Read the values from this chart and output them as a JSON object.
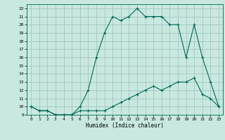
{
  "xlabel": "Humidex (Indice chaleur)",
  "bg_color": "#c8e8e0",
  "grid_color": "#a0c8c0",
  "line_color": "#006858",
  "xlim": [
    -0.5,
    23.5
  ],
  "ylim": [
    9,
    22.5
  ],
  "xticks": [
    0,
    1,
    2,
    3,
    4,
    5,
    6,
    7,
    8,
    9,
    10,
    11,
    12,
    13,
    14,
    15,
    16,
    17,
    18,
    19,
    20,
    21,
    22,
    23
  ],
  "yticks": [
    9,
    10,
    11,
    12,
    13,
    14,
    15,
    16,
    17,
    18,
    19,
    20,
    21,
    22
  ],
  "line1_x": [
    0,
    1,
    2,
    3,
    4,
    5,
    6,
    7,
    8,
    9,
    10,
    11,
    12,
    13,
    14,
    15,
    16,
    17,
    18,
    19,
    20,
    21,
    22,
    23
  ],
  "line1_y": [
    10,
    9.5,
    9.5,
    9,
    9,
    9,
    10,
    12,
    16,
    19,
    21,
    20.5,
    21,
    22,
    21,
    21,
    21,
    20,
    20,
    16,
    20,
    16,
    13,
    10
  ],
  "line2_x": [
    0,
    1,
    2,
    3,
    4,
    5,
    6,
    7,
    8,
    9,
    10,
    11,
    12,
    13,
    14,
    15,
    16,
    17,
    18,
    19,
    20,
    21,
    22,
    23
  ],
  "line2_y": [
    10,
    9.5,
    9.5,
    9,
    9,
    9,
    9.5,
    9.5,
    9.5,
    9.5,
    10,
    10.5,
    11,
    11.5,
    12,
    12.5,
    12,
    12.5,
    13,
    13,
    13.5,
    11.5,
    11,
    10
  ]
}
